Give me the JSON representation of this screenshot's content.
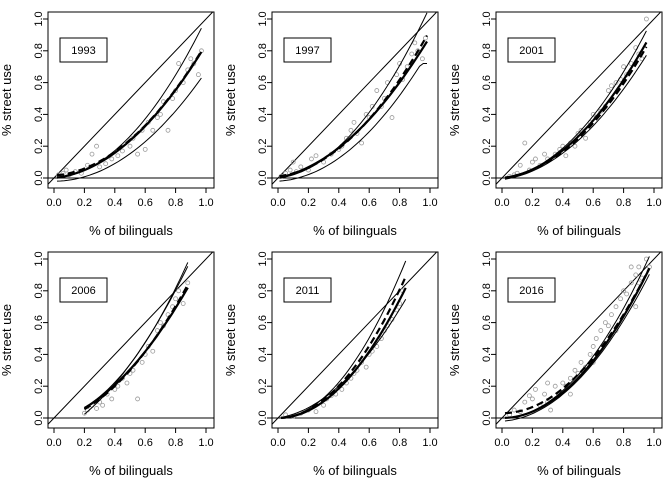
{
  "figure": {
    "xlabel": "% of bilinguals",
    "ylabel": "% street use",
    "ticks": [
      0.0,
      0.2,
      0.4,
      0.6,
      0.8,
      1.0
    ],
    "tick_labels": [
      "0.0",
      "0.2",
      "0.4",
      "0.6",
      "0.8",
      "1.0"
    ]
  },
  "chart_data": [
    {
      "type": "scatter",
      "title": "1993",
      "xlim": [
        0,
        1
      ],
      "ylim": [
        0,
        1
      ],
      "xlabel": "% of bilinguals",
      "ylabel": "% street use",
      "x_range": [
        0.02,
        0.97
      ],
      "points": [
        [
          0.03,
          0.02
        ],
        [
          0.06,
          0.03
        ],
        [
          0.08,
          0.05
        ],
        [
          0.1,
          0.02
        ],
        [
          0.14,
          0.04
        ],
        [
          0.18,
          0.03
        ],
        [
          0.22,
          0.08
        ],
        [
          0.25,
          0.15
        ],
        [
          0.28,
          0.2
        ],
        [
          0.3,
          0.07
        ],
        [
          0.34,
          0.09
        ],
        [
          0.38,
          0.12
        ],
        [
          0.42,
          0.14
        ],
        [
          0.45,
          0.17
        ],
        [
          0.5,
          0.2
        ],
        [
          0.52,
          0.25
        ],
        [
          0.55,
          0.15
        ],
        [
          0.58,
          0.3
        ],
        [
          0.6,
          0.18
        ],
        [
          0.62,
          0.35
        ],
        [
          0.65,
          0.3
        ],
        [
          0.68,
          0.38
        ],
        [
          0.7,
          0.4
        ],
        [
          0.72,
          0.48
        ],
        [
          0.75,
          0.3
        ],
        [
          0.78,
          0.5
        ],
        [
          0.8,
          0.55
        ],
        [
          0.82,
          0.72
        ],
        [
          0.85,
          0.6
        ],
        [
          0.88,
          0.68
        ],
        [
          0.9,
          0.75
        ],
        [
          0.92,
          0.72
        ],
        [
          0.95,
          0.65
        ],
        [
          0.97,
          0.8
        ]
      ],
      "fit": {
        "a": 0.0,
        "b": 0.1,
        "c": 0.74
      },
      "dashed": {
        "a": 0.015,
        "b": 0.07,
        "c": 0.76
      },
      "upper": {
        "a": 0.0,
        "b": 0.05,
        "c": 0.95
      },
      "lower": {
        "a": -0.02,
        "b": 0.0,
        "c": 0.69,
        "cap": 0.67
      }
    },
    {
      "type": "scatter",
      "title": "1997",
      "xlim": [
        0,
        1
      ],
      "ylim": [
        0,
        1
      ],
      "xlabel": "% of bilinguals",
      "ylabel": "% street use",
      "x_range": [
        0.01,
        0.98
      ],
      "points": [
        [
          0.02,
          0.01
        ],
        [
          0.05,
          0.03
        ],
        [
          0.08,
          0.05
        ],
        [
          0.1,
          0.1
        ],
        [
          0.12,
          0.04
        ],
        [
          0.15,
          0.07
        ],
        [
          0.2,
          0.05
        ],
        [
          0.22,
          0.12
        ],
        [
          0.25,
          0.14
        ],
        [
          0.3,
          0.1
        ],
        [
          0.35,
          0.15
        ],
        [
          0.4,
          0.18
        ],
        [
          0.42,
          0.2
        ],
        [
          0.45,
          0.25
        ],
        [
          0.48,
          0.3
        ],
        [
          0.5,
          0.35
        ],
        [
          0.52,
          0.28
        ],
        [
          0.55,
          0.22
        ],
        [
          0.58,
          0.4
        ],
        [
          0.6,
          0.38
        ],
        [
          0.62,
          0.45
        ],
        [
          0.65,
          0.55
        ],
        [
          0.68,
          0.45
        ],
        [
          0.7,
          0.5
        ],
        [
          0.72,
          0.6
        ],
        [
          0.75,
          0.38
        ],
        [
          0.78,
          0.65
        ],
        [
          0.8,
          0.72
        ],
        [
          0.82,
          0.62
        ],
        [
          0.85,
          0.7
        ],
        [
          0.88,
          0.78
        ],
        [
          0.9,
          0.85
        ],
        [
          0.92,
          0.8
        ],
        [
          0.95,
          0.75
        ],
        [
          0.97,
          0.88
        ]
      ],
      "fit": {
        "a": 0.0,
        "b": 0.2,
        "c": 0.69
      },
      "dashed": {
        "a": 0.01,
        "b": 0.12,
        "c": 0.8
      },
      "upper": {
        "a": 0.0,
        "b": 0.1,
        "c": 0.98
      },
      "lower": {
        "a": -0.02,
        "b": 0.05,
        "c": 0.78,
        "cap": 0.72
      }
    },
    {
      "type": "scatter",
      "title": "2001",
      "xlim": [
        0,
        1
      ],
      "ylim": [
        0,
        1
      ],
      "xlabel": "% of bilinguals",
      "ylabel": "% street use",
      "x_range": [
        0.02,
        0.95
      ],
      "points": [
        [
          0.05,
          0.01
        ],
        [
          0.08,
          0.02
        ],
        [
          0.1,
          0.03
        ],
        [
          0.12,
          0.08
        ],
        [
          0.15,
          0.22
        ],
        [
          0.18,
          0.05
        ],
        [
          0.2,
          0.1
        ],
        [
          0.22,
          0.12
        ],
        [
          0.25,
          0.08
        ],
        [
          0.28,
          0.15
        ],
        [
          0.3,
          0.12
        ],
        [
          0.35,
          0.15
        ],
        [
          0.38,
          0.18
        ],
        [
          0.4,
          0.2
        ],
        [
          0.42,
          0.14
        ],
        [
          0.45,
          0.22
        ],
        [
          0.48,
          0.2
        ],
        [
          0.5,
          0.28
        ],
        [
          0.52,
          0.3
        ],
        [
          0.55,
          0.25
        ],
        [
          0.58,
          0.35
        ],
        [
          0.6,
          0.4
        ],
        [
          0.62,
          0.38
        ],
        [
          0.65,
          0.42
        ],
        [
          0.68,
          0.45
        ],
        [
          0.7,
          0.55
        ],
        [
          0.72,
          0.58
        ],
        [
          0.75,
          0.6
        ],
        [
          0.78,
          0.62
        ],
        [
          0.8,
          0.7
        ],
        [
          0.82,
          0.65
        ],
        [
          0.85,
          0.72
        ],
        [
          0.88,
          0.82
        ],
        [
          0.9,
          0.78
        ],
        [
          0.92,
          0.75
        ],
        [
          0.95,
          1.0
        ]
      ],
      "fit": {
        "a": 0.0,
        "b": 0.1,
        "c": 0.84
      },
      "dashed": {
        "a": 0.0,
        "b": 0.08,
        "c": 0.83
      },
      "upper": {
        "a": 0.0,
        "b": 0.1,
        "c": 0.92
      },
      "lower": {
        "a": -0.01,
        "b": 0.12,
        "c": 0.74
      }
    },
    {
      "type": "scatter",
      "title": "2006",
      "xlim": [
        0,
        1
      ],
      "ylim": [
        0,
        1
      ],
      "xlabel": "% of bilinguals",
      "ylabel": "% street use",
      "x_range": [
        0.2,
        0.88
      ],
      "points": [
        [
          0.2,
          0.03
        ],
        [
          0.22,
          0.05
        ],
        [
          0.25,
          0.08
        ],
        [
          0.28,
          0.06
        ],
        [
          0.3,
          0.1
        ],
        [
          0.32,
          0.08
        ],
        [
          0.35,
          0.15
        ],
        [
          0.38,
          0.12
        ],
        [
          0.4,
          0.18
        ],
        [
          0.42,
          0.2
        ],
        [
          0.45,
          0.25
        ],
        [
          0.48,
          0.22
        ],
        [
          0.5,
          0.28
        ],
        [
          0.52,
          0.3
        ],
        [
          0.55,
          0.12
        ],
        [
          0.58,
          0.35
        ],
        [
          0.6,
          0.4
        ],
        [
          0.62,
          0.45
        ],
        [
          0.65,
          0.42
        ],
        [
          0.68,
          0.55
        ],
        [
          0.7,
          0.6
        ],
        [
          0.72,
          0.58
        ],
        [
          0.75,
          0.65
        ],
        [
          0.78,
          0.7
        ],
        [
          0.8,
          0.75
        ],
        [
          0.82,
          0.8
        ],
        [
          0.85,
          0.72
        ],
        [
          0.88,
          0.85
        ]
      ],
      "fit": {
        "a": -0.02,
        "b": 0.25,
        "c": 0.8
      },
      "dashed": {
        "a": -0.02,
        "b": 0.2,
        "c": 0.88
      },
      "upper": {
        "a": -0.1,
        "b": 0.45,
        "c": 0.85
      },
      "lower": {
        "a": 0.0,
        "b": 0.1,
        "c": 1.15
      }
    },
    {
      "type": "scatter",
      "title": "2011",
      "xlim": [
        0,
        1
      ],
      "ylim": [
        0,
        1
      ],
      "xlabel": "% of bilinguals",
      "ylabel": "% street use",
      "x_range": [
        0.02,
        0.84
      ],
      "points": [
        [
          0.05,
          0.02
        ],
        [
          0.1,
          0.01
        ],
        [
          0.15,
          0.03
        ],
        [
          0.2,
          0.05
        ],
        [
          0.25,
          0.04
        ],
        [
          0.3,
          0.08
        ],
        [
          0.32,
          0.12
        ],
        [
          0.35,
          0.14
        ],
        [
          0.38,
          0.15
        ],
        [
          0.4,
          0.2
        ],
        [
          0.42,
          0.18
        ],
        [
          0.45,
          0.22
        ],
        [
          0.48,
          0.25
        ],
        [
          0.5,
          0.28
        ],
        [
          0.52,
          0.3
        ],
        [
          0.55,
          0.35
        ],
        [
          0.58,
          0.32
        ],
        [
          0.6,
          0.4
        ],
        [
          0.62,
          0.42
        ],
        [
          0.65,
          0.45
        ],
        [
          0.68,
          0.5
        ],
        [
          0.7,
          0.55
        ],
        [
          0.72,
          0.58
        ],
        [
          0.75,
          0.62
        ],
        [
          0.78,
          0.68
        ],
        [
          0.8,
          0.72
        ],
        [
          0.82,
          0.8
        ]
      ],
      "fit": {
        "a": 0.0,
        "b": 0.0,
        "c": 1.16
      },
      "dashed": {
        "a": 0.0,
        "b": 0.0,
        "c": 1.26
      },
      "upper": {
        "a": 0.0,
        "b": 0.0,
        "c": 1.4
      },
      "lower": {
        "a": 0.0,
        "b": 0.15,
        "c": 0.88
      }
    },
    {
      "type": "scatter",
      "title": "2016",
      "xlim": [
        0,
        1
      ],
      "ylim": [
        0,
        1
      ],
      "xlabel": "% of bilinguals",
      "ylabel": "% street use",
      "x_range": [
        0.02,
        0.97
      ],
      "points": [
        [
          0.05,
          0.02
        ],
        [
          0.08,
          0.05
        ],
        [
          0.12,
          0.04
        ],
        [
          0.15,
          0.1
        ],
        [
          0.18,
          0.14
        ],
        [
          0.2,
          0.12
        ],
        [
          0.22,
          0.18
        ],
        [
          0.25,
          0.08
        ],
        [
          0.28,
          0.15
        ],
        [
          0.3,
          0.1
        ],
        [
          0.32,
          0.05
        ],
        [
          0.35,
          0.2
        ],
        [
          0.38,
          0.15
        ],
        [
          0.4,
          0.22
        ],
        [
          0.42,
          0.2
        ],
        [
          0.45,
          0.25
        ],
        [
          0.48,
          0.3
        ],
        [
          0.5,
          0.28
        ],
        [
          0.52,
          0.35
        ],
        [
          0.55,
          0.32
        ],
        [
          0.58,
          0.4
        ],
        [
          0.6,
          0.45
        ],
        [
          0.62,
          0.5
        ],
        [
          0.65,
          0.55
        ],
        [
          0.68,
          0.6
        ],
        [
          0.7,
          0.58
        ],
        [
          0.72,
          0.65
        ],
        [
          0.75,
          0.7
        ],
        [
          0.78,
          0.75
        ],
        [
          0.8,
          0.8
        ],
        [
          0.82,
          0.78
        ],
        [
          0.85,
          0.85
        ],
        [
          0.88,
          0.9
        ],
        [
          0.9,
          0.95
        ],
        [
          0.92,
          0.88
        ],
        [
          0.95,
          1.0
        ],
        [
          0.97,
          0.95
        ],
        [
          0.3,
          0.22
        ],
        [
          0.45,
          0.15
        ],
        [
          0.6,
          0.35
        ],
        [
          0.85,
          0.95
        ],
        [
          0.9,
          0.85
        ],
        [
          0.75,
          0.55
        ],
        [
          0.88,
          0.7
        ]
      ],
      "fit": {
        "a": 0.0,
        "b": 0.0,
        "c": 1.0
      },
      "dashed": {
        "a": 0.03,
        "b": 0.0,
        "c": 0.97
      },
      "upper": {
        "a": 0.0,
        "b": 0.0,
        "c": 1.08
      },
      "lower": {
        "a": -0.02,
        "b": 0.05,
        "c": 0.93
      }
    }
  ]
}
